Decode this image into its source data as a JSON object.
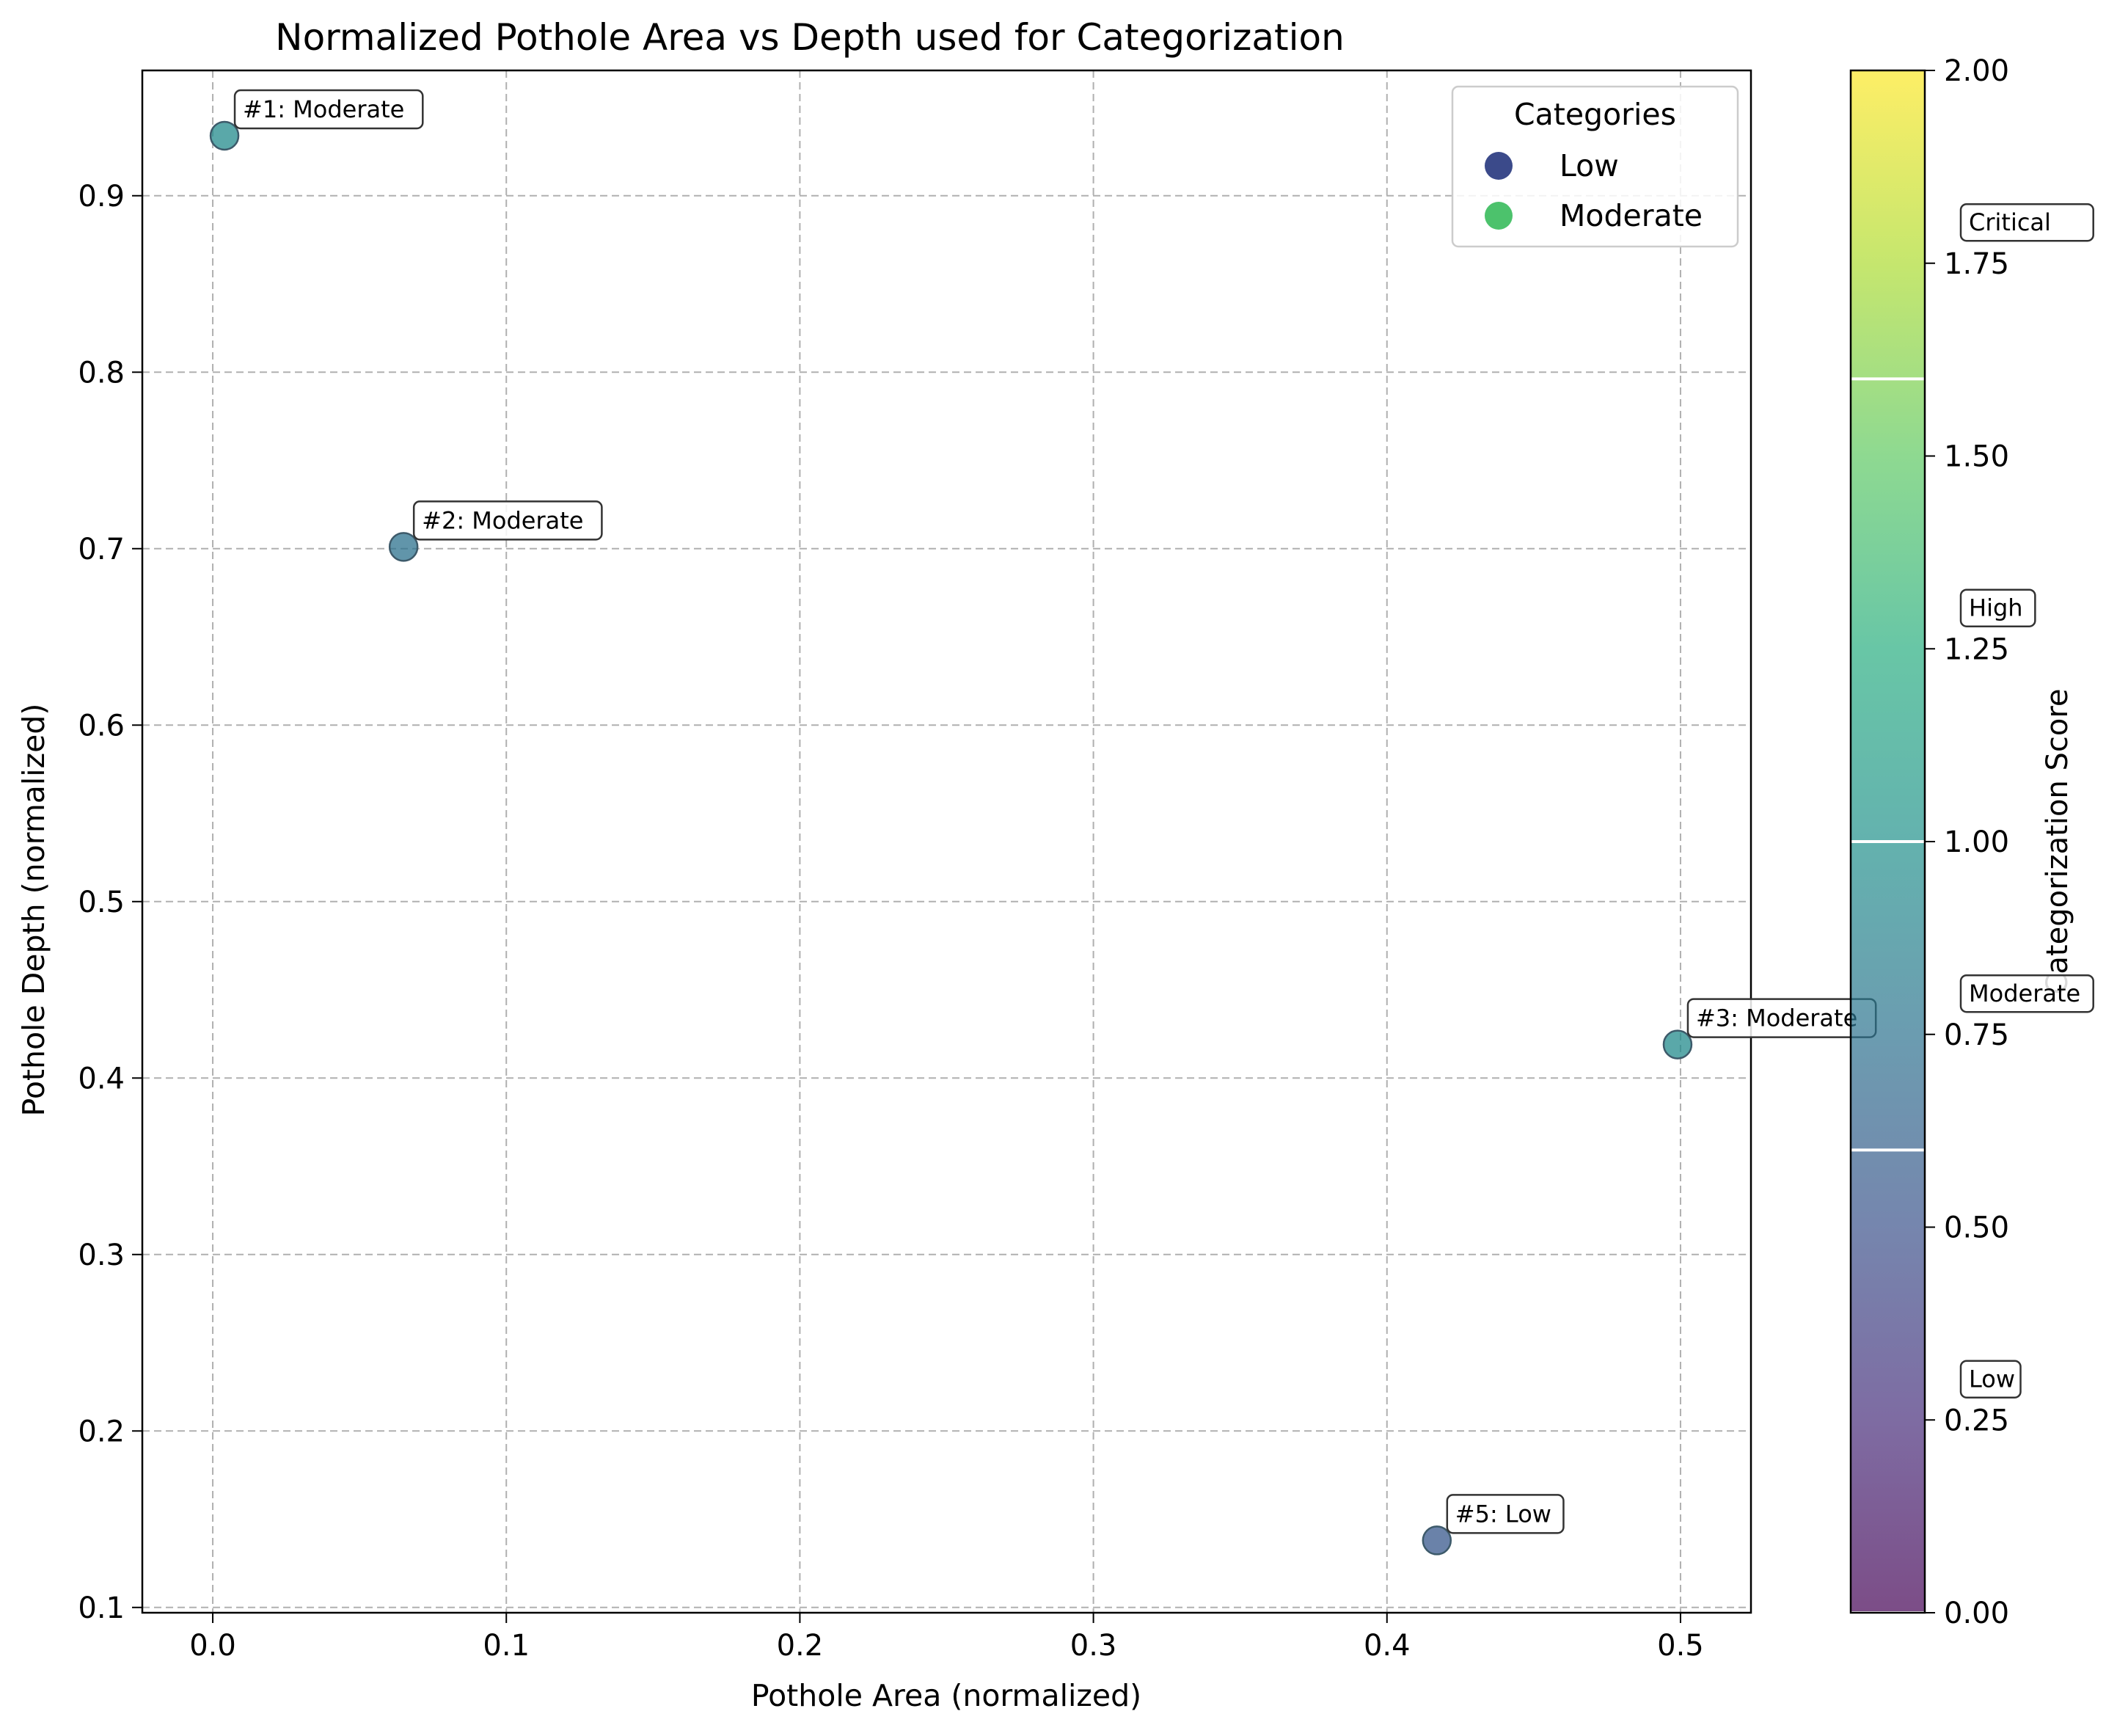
{
  "chart_data": {
    "type": "scatter",
    "title": "Normalized Pothole Area vs Depth used for Categorization",
    "xlabel": "Pothole Area (normalized)",
    "ylabel": "Pothole Depth (normalized)",
    "xlim": [
      -0.024,
      0.524
    ],
    "ylim": [
      0.097,
      0.971
    ],
    "xticks": [
      0.0,
      0.1,
      0.2,
      0.3,
      0.4,
      0.5
    ],
    "xtick_labels": [
      "0.0",
      "0.1",
      "0.2",
      "0.3",
      "0.4",
      "0.5"
    ],
    "yticks": [
      0.1,
      0.2,
      0.3,
      0.4,
      0.5,
      0.6,
      0.7,
      0.8,
      0.9
    ],
    "ytick_labels": [
      "0.1",
      "0.2",
      "0.3",
      "0.4",
      "0.5",
      "0.6",
      "0.7",
      "0.8",
      "0.9"
    ],
    "grid": true,
    "points": [
      {
        "label": "#1: Moderate",
        "x": 0.004,
        "y": 0.934,
        "score": 0.95
      },
      {
        "label": "#2: Moderate",
        "x": 0.065,
        "y": 0.701,
        "score": 0.75
      },
      {
        "label": "#3: Moderate",
        "x": 0.499,
        "y": 0.419,
        "score": 0.95
      },
      {
        "label": "#5: Low",
        "x": 0.417,
        "y": 0.138,
        "score": 0.55
      }
    ],
    "legend": {
      "title": "Categories",
      "position": "top-right",
      "entries": [
        {
          "label": "Low",
          "color": "#3b4a8a"
        },
        {
          "label": "Moderate",
          "color": "#4cc26c"
        }
      ]
    },
    "colorbar": {
      "label": "Categorization Score",
      "colormap": "viridis",
      "alpha": 0.7,
      "range": [
        0.0,
        2.0
      ],
      "ticks": [
        0.0,
        0.25,
        0.5,
        0.75,
        1.0,
        1.25,
        1.5,
        1.75,
        2.0
      ],
      "tick_labels": [
        "0.00",
        "0.25",
        "0.50",
        "0.75",
        "1.00",
        "1.25",
        "1.50",
        "1.75",
        "2.00"
      ],
      "boundaries": [
        0.0,
        0.6,
        1.0,
        1.6
      ],
      "category_labels": [
        {
          "label": "Low",
          "value": 0.3
        },
        {
          "label": "Moderate",
          "value": 0.8
        },
        {
          "label": "High",
          "value": 1.3
        },
        {
          "label": "Critical",
          "value": 1.8
        }
      ]
    }
  }
}
